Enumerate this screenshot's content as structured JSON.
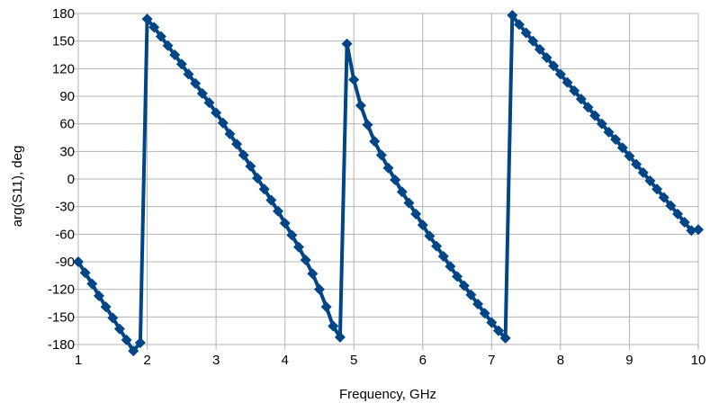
{
  "chart_data": {
    "type": "line",
    "title": "",
    "xlabel": "Frequency, GHz",
    "ylabel": "arg(S11), deg",
    "xlim": [
      1,
      10
    ],
    "ylim": [
      -180,
      180
    ],
    "xticks": [
      1,
      2,
      3,
      4,
      5,
      6,
      7,
      8,
      9,
      10
    ],
    "yticks": [
      180,
      150,
      120,
      90,
      60,
      30,
      0,
      -30,
      -60,
      -90,
      -120,
      -150,
      -180
    ],
    "grid": true,
    "legend": "none",
    "series": [
      {
        "color": "#004586",
        "marker": "diamond",
        "points": [
          [
            1.0,
            -90
          ],
          [
            1.1,
            -102
          ],
          [
            1.2,
            -114
          ],
          [
            1.3,
            -127
          ],
          [
            1.4,
            -139
          ],
          [
            1.5,
            -151
          ],
          [
            1.6,
            -163
          ],
          [
            1.7,
            -175
          ],
          [
            1.8,
            -187
          ],
          [
            1.9,
            -178
          ],
          [
            2.0,
            174
          ],
          [
            2.1,
            165
          ],
          [
            2.2,
            155
          ],
          [
            2.3,
            145
          ],
          [
            2.4,
            135
          ],
          [
            2.5,
            125
          ],
          [
            2.6,
            114
          ],
          [
            2.7,
            104
          ],
          [
            2.8,
            93
          ],
          [
            2.9,
            83
          ],
          [
            3.0,
            72
          ],
          [
            3.1,
            61
          ],
          [
            3.2,
            49
          ],
          [
            3.3,
            38
          ],
          [
            3.4,
            26
          ],
          [
            3.5,
            14
          ],
          [
            3.6,
            1
          ],
          [
            3.7,
            -11
          ],
          [
            3.8,
            -23
          ],
          [
            3.9,
            -35
          ],
          [
            4.0,
            -48
          ],
          [
            4.1,
            -61
          ],
          [
            4.2,
            -74
          ],
          [
            4.3,
            -88
          ],
          [
            4.4,
            -103
          ],
          [
            4.5,
            -120
          ],
          [
            4.6,
            -139
          ],
          [
            4.7,
            -160
          ],
          [
            4.8,
            -172
          ],
          [
            4.9,
            147
          ],
          [
            5.0,
            108
          ],
          [
            5.1,
            80
          ],
          [
            5.2,
            59
          ],
          [
            5.3,
            41
          ],
          [
            5.4,
            26
          ],
          [
            5.5,
            12
          ],
          [
            5.6,
            -1
          ],
          [
            5.7,
            -14
          ],
          [
            5.8,
            -26
          ],
          [
            5.9,
            -38
          ],
          [
            6.0,
            -50
          ],
          [
            6.1,
            -62
          ],
          [
            6.2,
            -73
          ],
          [
            6.3,
            -84
          ],
          [
            6.4,
            -95
          ],
          [
            6.5,
            -106
          ],
          [
            6.6,
            -116
          ],
          [
            6.7,
            -126
          ],
          [
            6.8,
            -136
          ],
          [
            6.9,
            -146
          ],
          [
            7.0,
            -156
          ],
          [
            7.1,
            -165
          ],
          [
            7.2,
            -173
          ],
          [
            7.3,
            178
          ],
          [
            7.4,
            168
          ],
          [
            7.5,
            159
          ],
          [
            7.6,
            150
          ],
          [
            7.7,
            141
          ],
          [
            7.8,
            132
          ],
          [
            7.9,
            123
          ],
          [
            8.0,
            114
          ],
          [
            8.1,
            105
          ],
          [
            8.2,
            96
          ],
          [
            8.3,
            87
          ],
          [
            8.4,
            78
          ],
          [
            8.5,
            69
          ],
          [
            8.6,
            60
          ],
          [
            8.7,
            51
          ],
          [
            8.8,
            43
          ],
          [
            8.9,
            34
          ],
          [
            9.0,
            25
          ],
          [
            9.1,
            16
          ],
          [
            9.2,
            7
          ],
          [
            9.3,
            -2
          ],
          [
            9.4,
            -11
          ],
          [
            9.5,
            -20
          ],
          [
            9.6,
            -29
          ],
          [
            9.7,
            -38
          ],
          [
            9.8,
            -47
          ],
          [
            9.9,
            -56
          ],
          [
            10.0,
            -55
          ]
        ]
      }
    ]
  }
}
